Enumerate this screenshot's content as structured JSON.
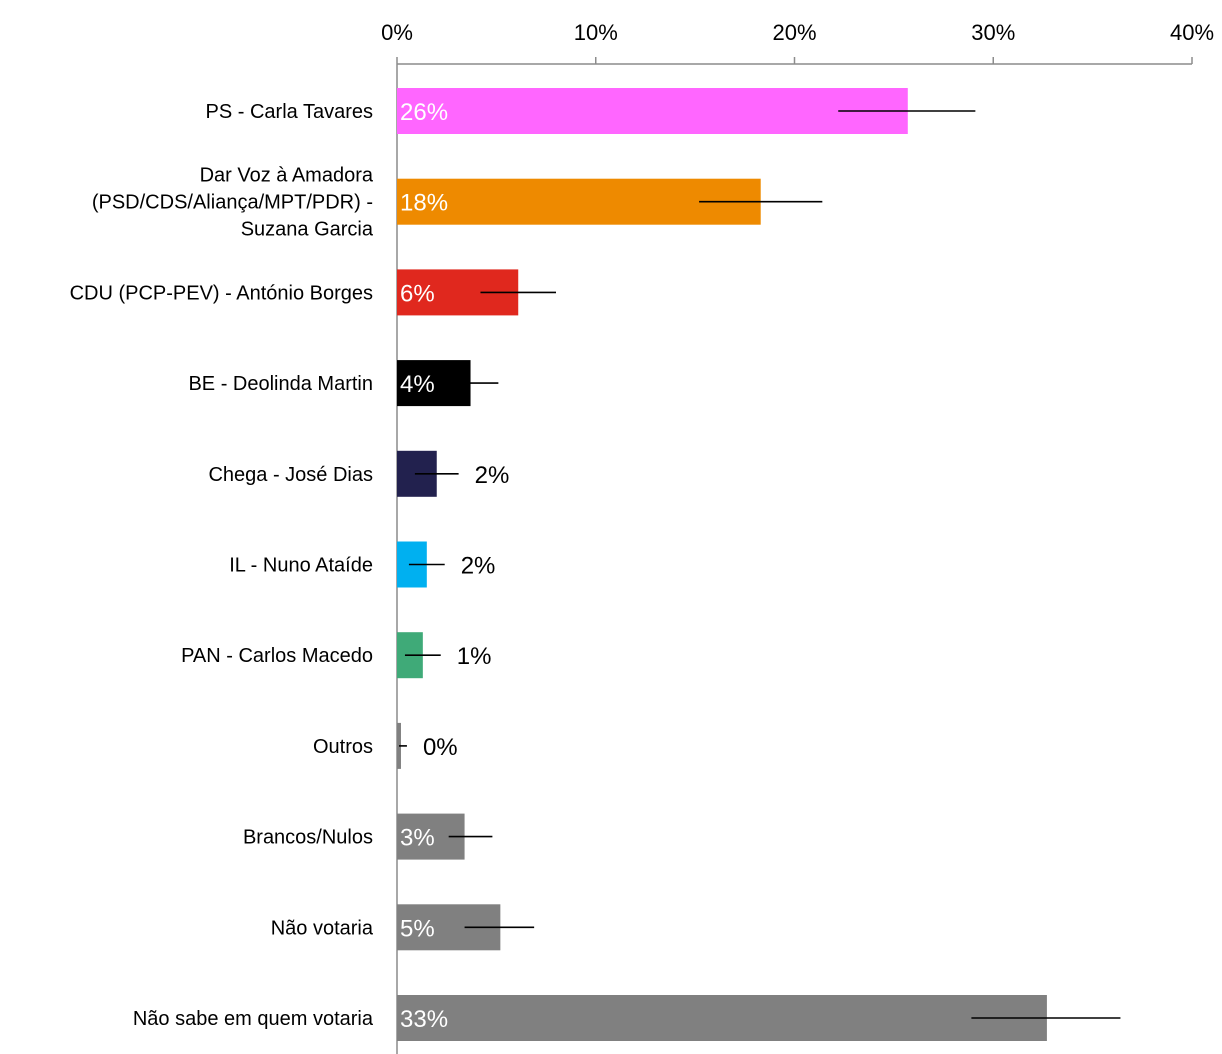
{
  "chart_data": {
    "type": "bar",
    "orientation": "horizontal",
    "title": "",
    "xlabel": "",
    "ylabel": "",
    "xlim": [
      0,
      40
    ],
    "x_ticks": [
      "0%",
      "10%",
      "20%",
      "30%",
      "40%"
    ],
    "grid": false,
    "legend": "none",
    "categories": [
      [
        "PS - Carla Tavares"
      ],
      [
        "Dar Voz à Amadora",
        "(PSD/CDS/Aliança/MPT/PDR) -",
        "Suzana Garcia"
      ],
      [
        "CDU (PCP-PEV) -  António Borges"
      ],
      [
        "BE - Deolinda Martin"
      ],
      [
        "Chega - José Dias"
      ],
      [
        "IL - Nuno Ataíde"
      ],
      [
        "PAN - Carlos Macedo"
      ],
      [
        "Outros"
      ],
      [
        "Brancos/Nulos"
      ],
      [
        "Não votaria"
      ],
      [
        "Não sabe em quem votaria"
      ]
    ],
    "values": [
      25.7,
      18.3,
      6.1,
      3.7,
      2.0,
      1.5,
      1.3,
      0.2,
      3.4,
      5.2,
      32.7
    ],
    "error_low": [
      22.2,
      15.2,
      4.2,
      2.6,
      0.9,
      0.6,
      0.4,
      0.1,
      2.6,
      3.4,
      28.9
    ],
    "error_high": [
      29.1,
      21.4,
      8.0,
      5.1,
      3.1,
      2.4,
      2.2,
      0.5,
      4.8,
      6.9,
      36.4
    ],
    "data_labels": [
      "26%",
      "18%",
      "6%",
      "4%",
      "2%",
      "2%",
      "1%",
      "0%",
      "3%",
      "5%",
      "33%"
    ],
    "label_inside": [
      true,
      true,
      true,
      true,
      false,
      false,
      false,
      false,
      true,
      true,
      true
    ],
    "colors": [
      "#FF66FF",
      "#EE8A00",
      "#E0281E",
      "#000000",
      "#22214E",
      "#00B0F0",
      "#3FAA78",
      "#808080",
      "#808080",
      "#808080",
      "#808080"
    ]
  }
}
